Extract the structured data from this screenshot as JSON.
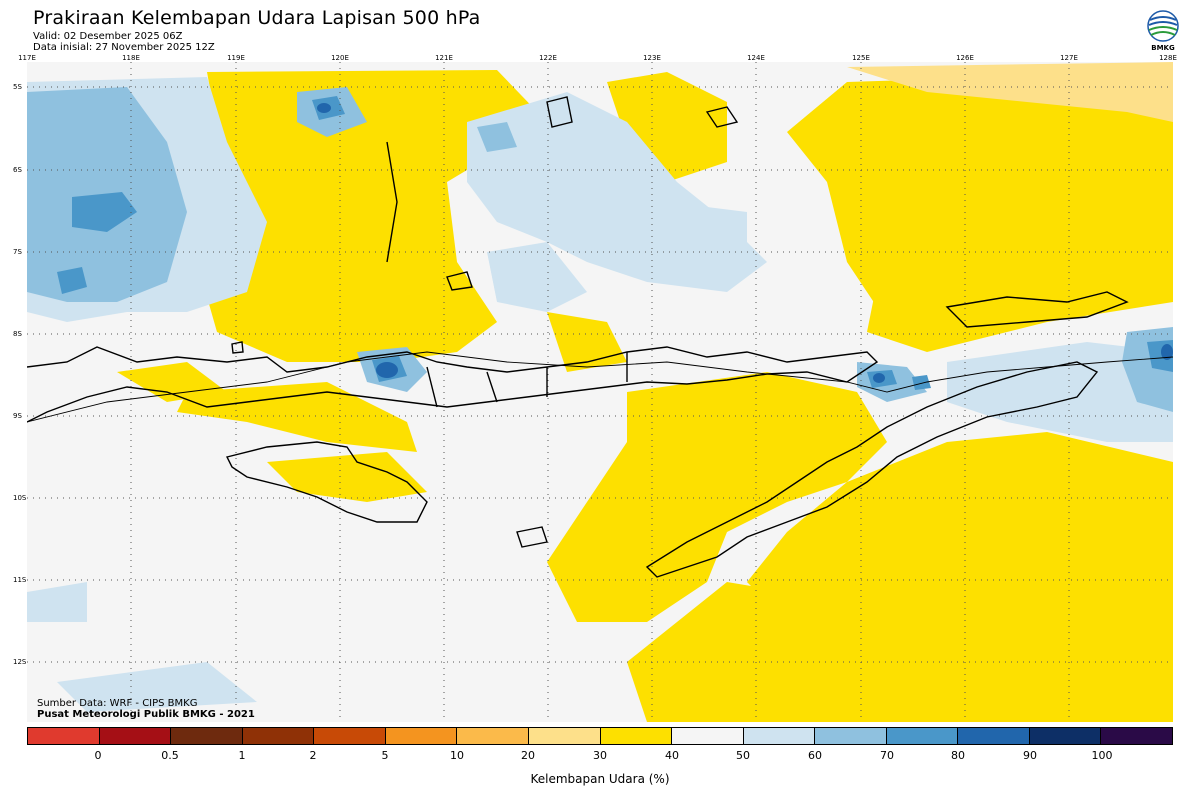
{
  "header": {
    "title": "Prakiraan Kelembapan Udara Lapisan 500 hPa",
    "valid": "Valid: 02 Desember 2025 06Z",
    "init": "Data inisial: 27 November 2025 12Z"
  },
  "logo": {
    "label": "BMKG",
    "icon": "bmkg-logo-icon"
  },
  "axes": {
    "lon_labels": [
      "117E",
      "118E",
      "119E",
      "120E",
      "121E",
      "122E",
      "123E",
      "124E",
      "125E",
      "126E",
      "127E",
      "128E"
    ],
    "lat_labels": [
      "5S",
      "6S",
      "7S",
      "8S",
      "9S",
      "10S",
      "11S",
      "12S"
    ]
  },
  "credits": {
    "source": "Sumber Data: WRF - CIPS BMKG",
    "center": "Pusat Meteorologi Publik BMKG - 2021"
  },
  "legend": {
    "title": "Kelembapan Udara (%)",
    "labels": [
      "0",
      "0.5",
      "1",
      "2",
      "5",
      "10",
      "20",
      "30",
      "40",
      "50",
      "60",
      "70",
      "80",
      "90",
      "100"
    ],
    "colors": [
      "#e03a2e",
      "#a50f15",
      "#6e2a0e",
      "#8f3106",
      "#c84a06",
      "#f4941f",
      "#fbba4a",
      "#fde08a",
      "#fde000",
      "#f5f5f5",
      "#cfe3f0",
      "#8fc1df",
      "#4a97c9",
      "#2166ac",
      "#0d2f66",
      "#2a0a47"
    ]
  },
  "palette": {
    "dry_yellow": "#fde000",
    "neutral": "#f5f5f5",
    "pale_blue": "#cfe3f0",
    "mid_blue": "#8fc1df",
    "blue": "#4a97c9",
    "dark_blue": "#2166ac",
    "pale_orange": "#fde08a"
  }
}
